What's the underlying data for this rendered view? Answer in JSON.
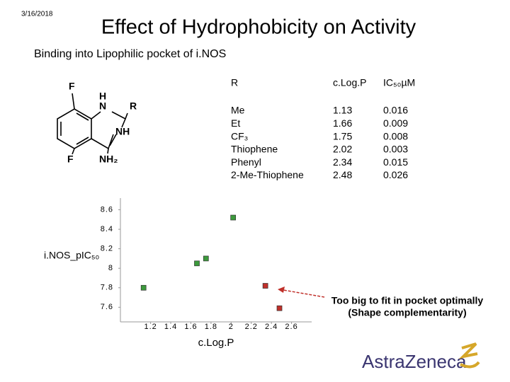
{
  "date": "3/16/2018",
  "title": "Effect of Hydrophobicity on Activity",
  "subtitle": "Binding into Lipophilic pocket of i.NOS",
  "structure": {
    "labels": [
      "F",
      "H",
      "N",
      "R",
      "NH",
      "F",
      "NH₂"
    ]
  },
  "table": {
    "header": [
      "R",
      "c.Log.P",
      "IC₅₀µM"
    ],
    "rows": [
      [
        "Me",
        "1.13",
        "0.016"
      ],
      [
        "Et",
        "1.66",
        "0.009"
      ],
      [
        "CF₃",
        "1.75",
        "0.008"
      ],
      [
        "Thiophene",
        "2.02",
        "0.003"
      ],
      [
        "Phenyl",
        "2.34",
        "0.015"
      ],
      [
        "2-Me-Thiophene",
        "2.48",
        "0.026"
      ]
    ]
  },
  "annotation": [
    "Too big to fit in pocket optimally",
    "(Shape complementarity)"
  ],
  "logo": "AstraZeneca",
  "chart_data": {
    "type": "scatter",
    "xlabel": "c.Log.P",
    "ylabel": "i.NOS_pIC₅₀",
    "x": [
      1.13,
      1.66,
      1.75,
      2.02,
      2.34,
      2.48
    ],
    "series": [
      {
        "values": [
          7.8,
          8.05,
          8.1,
          8.52,
          7.82,
          7.59
        ],
        "colors": [
          "#3c9a3c",
          "#3c9a3c",
          "#3c9a3c",
          "#3c9a3c",
          "#c0302a",
          "#c0302a"
        ]
      }
    ],
    "xlim": [
      0.9,
      2.8
    ],
    "ylim": [
      7.45,
      8.72
    ],
    "xticks": [
      1.2,
      1.4,
      1.6,
      1.8,
      2,
      2.2,
      2.4,
      2.6
    ],
    "yticks": [
      7.6,
      7.8,
      8,
      8.2,
      8.4,
      8.6
    ]
  }
}
